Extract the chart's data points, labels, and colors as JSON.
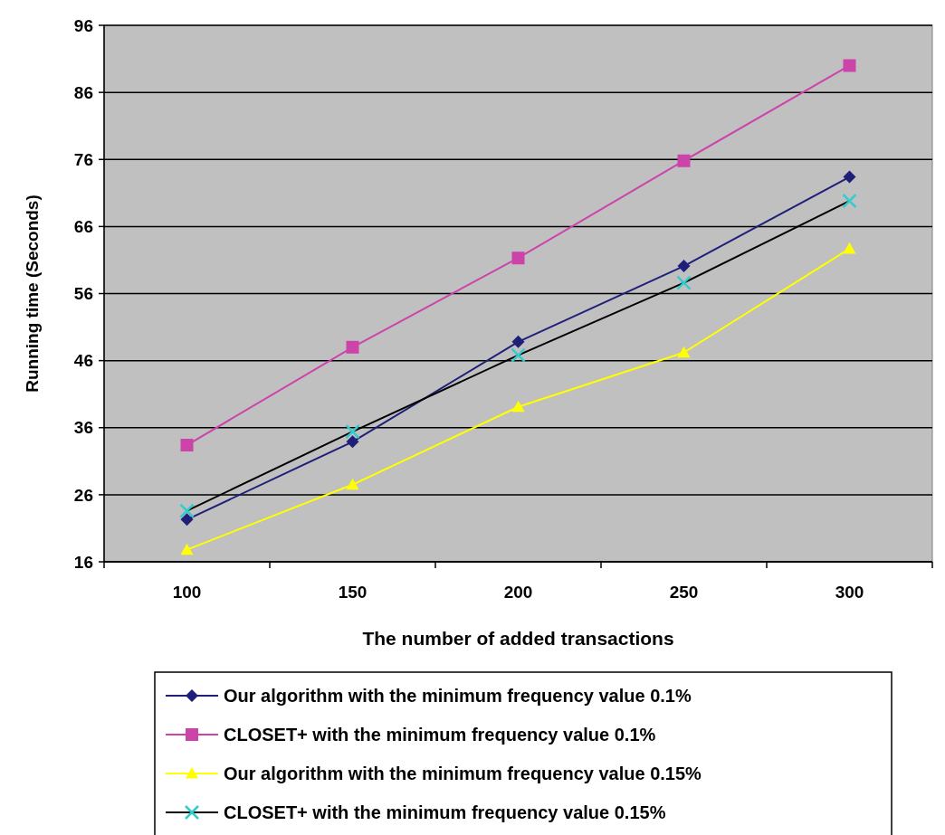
{
  "chart_data": {
    "type": "line",
    "xlabel": "The number of added transactions",
    "ylabel": "Running time (Seconds)",
    "categories": [
      "100",
      "150",
      "200",
      "250",
      "300"
    ],
    "ylim": [
      16,
      96
    ],
    "yticks": [
      16,
      26,
      36,
      46,
      56,
      66,
      76,
      86,
      96
    ],
    "grid": "y",
    "legend": "bottom",
    "series": [
      {
        "name": "Our algorithm with the minimum frequency value 0.1%",
        "color": "#1f1f7a",
        "marker": "diamond",
        "values": [
          22.3,
          33.9,
          48.8,
          60.1,
          73.4
        ]
      },
      {
        "name": "CLOSET+ with the minimum frequency value 0.1%",
        "color": "#cc44aa",
        "marker": "square",
        "values": [
          33.4,
          48,
          61.3,
          75.8,
          90
        ]
      },
      {
        "name": "Our algorithm with the minimum frequency value 0.15%",
        "color": "#ffff00",
        "marker": "triangle",
        "values": [
          17.8,
          27.5,
          39.1,
          47.2,
          62.7
        ]
      },
      {
        "name": "CLOSET+ with the minimum frequency value 0.15%",
        "color": "#000000",
        "colors": [
          "#33cccc",
          "#33cccc",
          "#33cccc",
          "#33cccc",
          "#33cccc"
        ],
        "marker": "cross",
        "values": [
          23.6,
          35.4,
          46.8,
          57.6,
          69.8
        ]
      }
    ]
  }
}
